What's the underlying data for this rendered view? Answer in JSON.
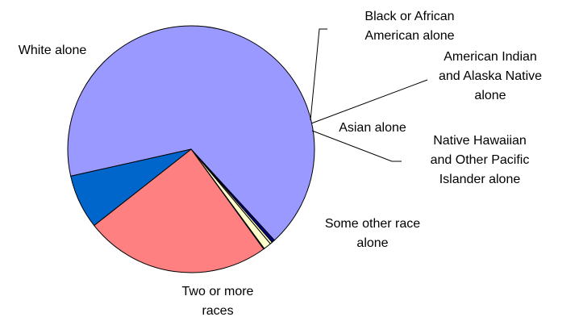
{
  "chart_data": {
    "type": "pie",
    "title": "",
    "slices": [
      {
        "label_lines": [
          "White alone"
        ],
        "value": 66.7,
        "color": "#9999ff"
      },
      {
        "label_lines": [
          "Black or African",
          "American alone"
        ],
        "value": 0.4,
        "color": "#000080"
      },
      {
        "label_lines": [
          "American Indian",
          "and Alaska Native",
          "alone"
        ],
        "value": 0.3,
        "color": "#ffffcc"
      },
      {
        "label_lines": [
          "Asian alone"
        ],
        "value": 1.0,
        "color": "#ffffcc"
      },
      {
        "label_lines": [
          "Native Hawaiian",
          "and Other Pacific",
          "Islander alone"
        ],
        "value": 0.1,
        "color": "#000080"
      },
      {
        "label_lines": [
          "Some other race",
          "alone"
        ],
        "value": 24.4,
        "color": "#ff8080"
      },
      {
        "label_lines": [
          "Two or more",
          "races"
        ],
        "value": 7.1,
        "color": "#0066cc"
      }
    ],
    "start_angle_deg": 192.6,
    "legend": "none"
  }
}
